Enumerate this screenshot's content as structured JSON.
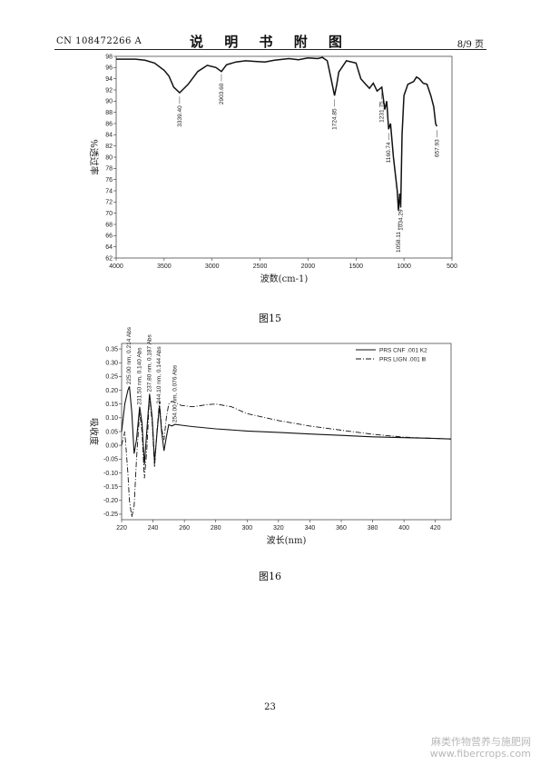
{
  "header": {
    "left": "CN 108472266 A",
    "center": "说 明 书 附 图",
    "right": "8/9 页"
  },
  "figures": {
    "fig15_caption": "图15",
    "fig16_caption": "图16"
  },
  "footer": {
    "page_number": "23",
    "watermark_line1": "麻类作物营养与施肥网",
    "watermark_line2": "www.fibercrops.com"
  },
  "chart_data": [
    {
      "type": "line",
      "xlabel": "波数(cm-1)",
      "ylabel": "%透过率",
      "xlim": [
        4000,
        500
      ],
      "ylim": [
        62,
        98
      ],
      "x_ticks": [
        4000,
        3500,
        3000,
        2500,
        2000,
        1500,
        1000,
        500
      ],
      "y_ticks": [
        62,
        64,
        66,
        68,
        70,
        72,
        74,
        76,
        78,
        80,
        82,
        84,
        86,
        88,
        90,
        92,
        94,
        96,
        98
      ],
      "annotations": [
        "3339.40",
        "2903.60",
        "1724.85",
        "1231.75",
        "1160.74",
        "1058.11",
        "1034.29",
        "657.93"
      ],
      "series": [
        {
          "x": [
            4000,
            3800,
            3700,
            3600,
            3500,
            3450,
            3400,
            3339,
            3250,
            3150,
            3050,
            2960,
            2903,
            2850,
            2750,
            2650,
            2550,
            2450,
            2350,
            2200,
            2100,
            2000,
            1900,
            1850,
            1800,
            1760,
            1724,
            1700,
            1680,
            1600,
            1500,
            1450,
            1400,
            1360,
            1320,
            1280,
            1231,
            1200,
            1180,
            1160,
            1140,
            1110,
            1090,
            1070,
            1058,
            1045,
            1034,
            1020,
            1000,
            960,
            900,
            870,
            840,
            800,
            760,
            720,
            690,
            670,
            658
          ],
          "y": [
            97.5,
            97.5,
            97.3,
            96.8,
            95.5,
            94.5,
            92.5,
            91.5,
            93.0,
            95.3,
            96.4,
            96.0,
            95.3,
            96.5,
            97.0,
            97.2,
            97.1,
            97.0,
            97.3,
            97.6,
            97.4,
            97.7,
            97.6,
            97.8,
            97.2,
            94.0,
            91.0,
            93.0,
            95.2,
            97.2,
            96.8,
            94.0,
            93.0,
            92.3,
            93.2,
            91.8,
            92.5,
            88.5,
            90.0,
            85.0,
            86.0,
            80.0,
            77.0,
            74.0,
            70.5,
            73.5,
            71.0,
            84.0,
            91.0,
            93.0,
            93.5,
            94.3,
            94.0,
            93.2,
            93.0,
            91.0,
            89.0,
            86.0,
            85.5
          ]
        }
      ]
    },
    {
      "type": "line",
      "xlabel": "波长(nm)",
      "ylabel": "吸收度",
      "xlim": [
        220,
        430
      ],
      "ylim": [
        -0.27,
        0.37
      ],
      "x_ticks": [
        220,
        240,
        260,
        280,
        300,
        320,
        340,
        360,
        380,
        400,
        420
      ],
      "y_ticks": [
        -0.25,
        -0.2,
        -0.15,
        -0.1,
        -0.05,
        0.0,
        0.05,
        0.1,
        0.15,
        0.2,
        0.25,
        0.3,
        0.35
      ],
      "legend_position": "top-right",
      "annotations": [
        "225.00 nm, 0.214 Abs",
        "231.50 nm, 0.140 Abs",
        "237.80 nm, 0.187 Abs",
        "244.10 nm, 0.144 Abs",
        "254.00 nm, 0.076 Abs"
      ],
      "series": [
        {
          "name": "PRS CNF .001 K2",
          "x": [
            220,
            222,
            224,
            225,
            226.5,
            228,
            229.5,
            231.5,
            233,
            234.5,
            236,
            237.8,
            239.5,
            241,
            242.5,
            244.1,
            245.5,
            247,
            248.5,
            250,
            252,
            254,
            258,
            265,
            280,
            300,
            320,
            340,
            360,
            380,
            400,
            420,
            430
          ],
          "y": [
            0.05,
            0.15,
            0.2,
            0.214,
            0.12,
            -0.03,
            0.02,
            0.14,
            0.08,
            -0.07,
            0.05,
            0.187,
            0.1,
            -0.06,
            0.04,
            0.144,
            0.05,
            -0.02,
            0.03,
            0.075,
            0.07,
            0.076,
            0.073,
            0.068,
            0.06,
            0.052,
            0.047,
            0.041,
            0.036,
            0.031,
            0.028,
            0.025,
            0.023
          ]
        },
        {
          "name": "PRS LIGN .001 Ⅲ",
          "x": [
            220,
            222,
            224,
            225,
            226.5,
            228,
            229.5,
            231.5,
            233,
            234.5,
            236,
            237.8,
            239.5,
            241,
            242.5,
            244.1,
            245.5,
            247,
            248.5,
            250,
            252,
            254,
            258,
            265,
            275,
            280,
            290,
            300,
            320,
            340,
            360,
            380,
            400,
            420,
            430
          ],
          "y": [
            0.0,
            0.05,
            -0.1,
            -0.2,
            -0.26,
            -0.22,
            -0.05,
            0.12,
            0.05,
            -0.12,
            -0.02,
            0.18,
            0.08,
            -0.08,
            0.05,
            0.16,
            0.06,
            0.02,
            0.1,
            0.15,
            0.16,
            0.155,
            0.145,
            0.14,
            0.148,
            0.15,
            0.14,
            0.115,
            0.09,
            0.07,
            0.055,
            0.04,
            0.03,
            0.025,
            0.023
          ]
        }
      ]
    }
  ]
}
